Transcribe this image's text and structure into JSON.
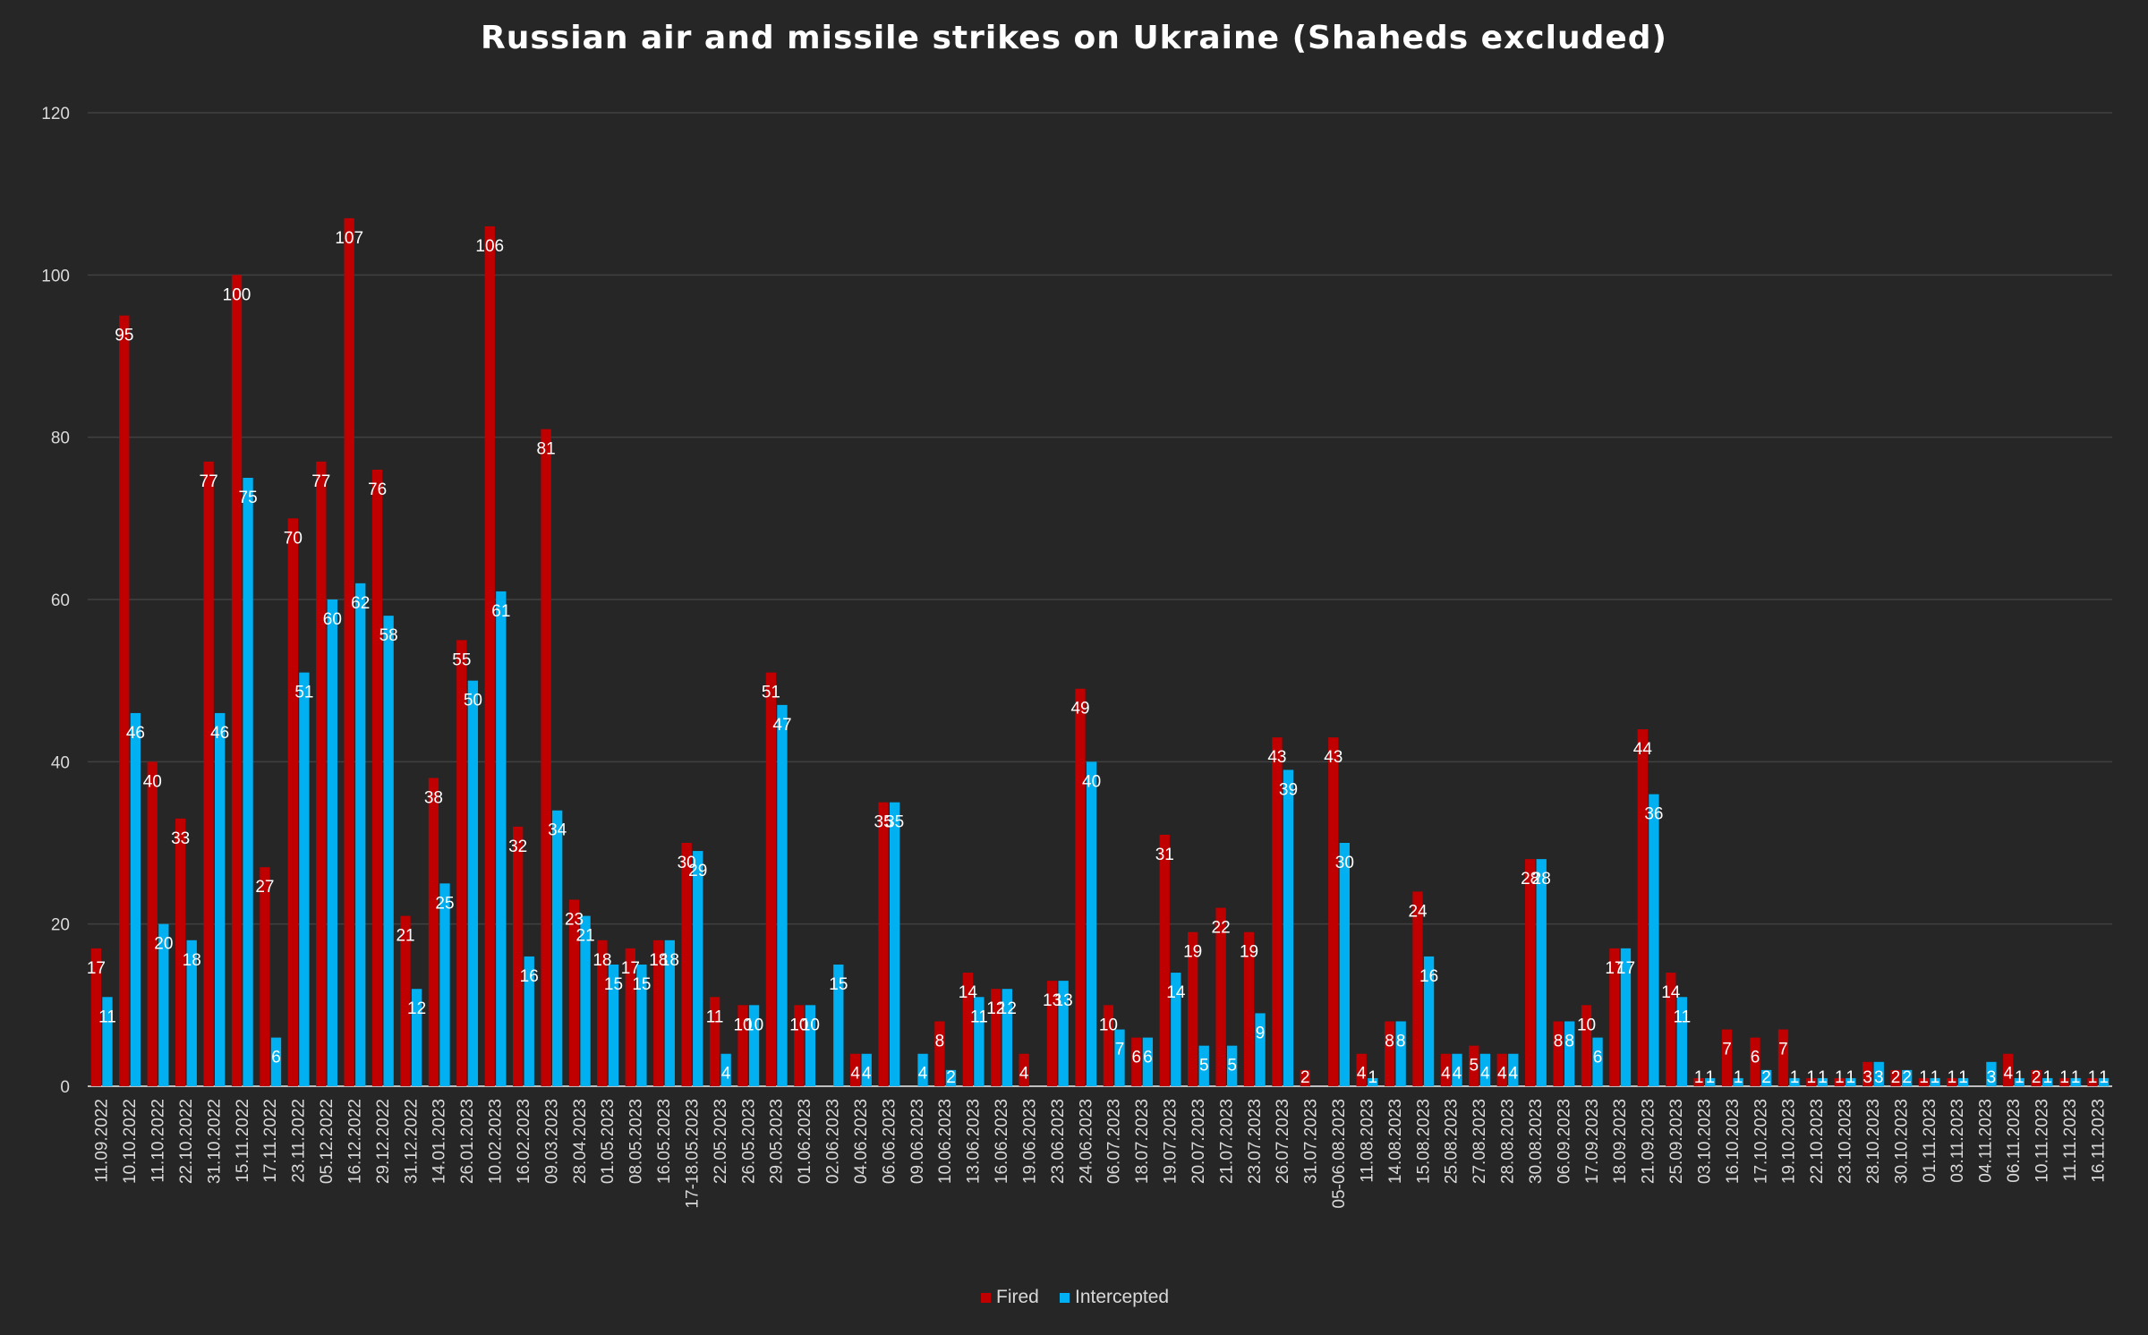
{
  "chart_data": {
    "type": "bar",
    "title": "Russian air and missile strikes on Ukraine (Shaheds excluded)",
    "xlabel": "",
    "ylabel": "",
    "ylim": [
      0,
      120
    ],
    "yticks": [
      0,
      20,
      40,
      60,
      80,
      100,
      120
    ],
    "grid": true,
    "legend_position": "bottom",
    "categories": [
      "11.09.2022",
      "10.10.2022",
      "11.10.2022",
      "22.10.2022",
      "31.10.2022",
      "15.11.2022",
      "17.11.2022",
      "23.11.2022",
      "05.12.2022",
      "16.12.2022",
      "29.12.2022",
      "31.12.2022",
      "14.01.2023",
      "26.01.2023",
      "10.02.2023",
      "16.02.2023",
      "09.03.2023",
      "28.04.2023",
      "01.05.2023",
      "08.05.2023",
      "16.05.2023",
      "17-18.05.2023",
      "22.05.2023",
      "26.05.2023",
      "29.05.2023",
      "01.06.2023",
      "02.06.2023",
      "04.06.2023",
      "06.06.2023",
      "09.06.2023",
      "10.06.2023",
      "13.06.2023",
      "16.06.2023",
      "19.06.2023",
      "23.06.2023",
      "24.06.2023",
      "06.07.2023",
      "18.07.2023",
      "19.07.2023",
      "20.07.2023",
      "21.07.2023",
      "23.07.2023",
      "26.07.2023",
      "31.07.2023",
      "05-06.08.2023",
      "11.08.2023",
      "14.08.2023",
      "15.08.2023",
      "25.08.2023",
      "27.08.2023",
      "28.08.2023",
      "30.08.2023",
      "06.09.2023",
      "17.09.2023",
      "18.09.2023",
      "21.09.2023",
      "25.09.2023",
      "03.10.2023",
      "16.10.2023",
      "17.10.2023",
      "19.10.2023",
      "22.10.2023",
      "23.10.2023",
      "28.10.2023",
      "30.10.2023",
      "01.11.2023",
      "03.11.2023",
      "04.11.2023",
      "06.11.2023",
      "10.11.2023",
      "11.11.2023",
      "16.11.2023"
    ],
    "series": [
      {
        "name": "Fired",
        "color": "#c00000",
        "values": [
          17,
          95,
          40,
          33,
          77,
          100,
          27,
          70,
          77,
          107,
          76,
          21,
          38,
          55,
          106,
          32,
          81,
          23,
          18,
          17,
          18,
          30,
          11,
          10,
          51,
          10,
          0,
          4,
          35,
          0,
          8,
          14,
          12,
          4,
          13,
          49,
          10,
          6,
          31,
          19,
          22,
          19,
          43,
          2,
          43,
          4,
          8,
          24,
          4,
          5,
          4,
          28,
          8,
          10,
          17,
          44,
          14,
          1,
          7,
          6,
          7,
          1,
          1,
          3,
          2,
          1,
          1,
          0,
          4,
          2,
          1,
          1
        ]
      },
      {
        "name": "Intercepted",
        "color": "#00b0f0",
        "values": [
          11,
          46,
          20,
          18,
          46,
          75,
          6,
          51,
          60,
          62,
          58,
          12,
          25,
          50,
          61,
          16,
          34,
          21,
          15,
          15,
          18,
          29,
          4,
          10,
          47,
          10,
          15,
          4,
          35,
          4,
          2,
          11,
          12,
          0,
          13,
          40,
          7,
          6,
          14,
          5,
          5,
          9,
          39,
          0,
          30,
          1,
          8,
          16,
          4,
          4,
          4,
          28,
          8,
          6,
          17,
          36,
          11,
          1,
          1,
          2,
          1,
          1,
          1,
          3,
          2,
          1,
          1,
          3,
          1,
          1,
          1,
          1
        ]
      }
    ]
  }
}
